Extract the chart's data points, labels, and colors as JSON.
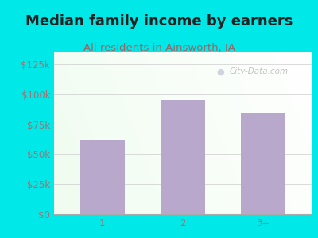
{
  "title": "Median family income by earners",
  "subtitle": "All residents in Ainsworth, IA",
  "categories": [
    "1",
    "2",
    "3+"
  ],
  "values": [
    62000,
    95000,
    85000
  ],
  "bar_color": "#b8a8cc",
  "background_color": "#00e8e8",
  "title_color": "#222222",
  "subtitle_color": "#996666",
  "tick_label_color": "#997777",
  "yticks": [
    0,
    25000,
    50000,
    75000,
    100000,
    125000
  ],
  "ytick_labels": [
    "$0",
    "$25k",
    "$50k",
    "$75k",
    "$100k",
    "$125k"
  ],
  "ylim": [
    0,
    135000
  ],
  "watermark": "City-Data.com",
  "title_fontsize": 13,
  "subtitle_fontsize": 9.5,
  "tick_fontsize": 8.5,
  "grid_color": "#cccccc"
}
